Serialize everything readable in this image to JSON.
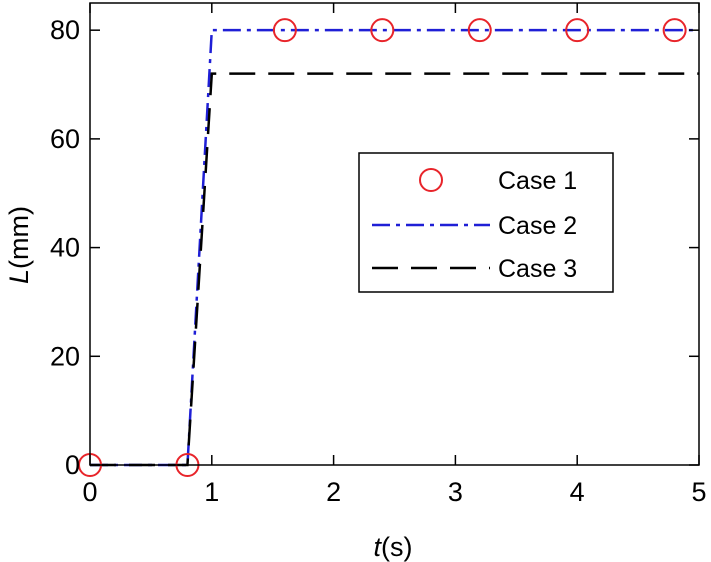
{
  "chart_data": {
    "type": "line",
    "xlabel_var": "t",
    "xlabel_unit": "(s)",
    "ylabel_var": "L",
    "ylabel_unit": "(mm)",
    "xlim": [
      0,
      5
    ],
    "ylim": [
      0,
      85
    ],
    "xticks": [
      0,
      1,
      2,
      3,
      4,
      5
    ],
    "yticks": [
      0,
      20,
      40,
      60,
      80
    ],
    "grid": false,
    "legend_position": "center-right",
    "series": [
      {
        "name": "Case 1",
        "style": "markers",
        "marker": "circle",
        "color": "#e8242a",
        "x": [
          0,
          0.8,
          1.6,
          2.4,
          3.2,
          4.0,
          4.8
        ],
        "y": [
          0,
          0,
          80,
          80,
          80,
          80,
          80
        ]
      },
      {
        "name": "Case 2",
        "style": "dashdot",
        "color": "#1f1fd6",
        "x": [
          0,
          0.8,
          1.0,
          5.0
        ],
        "y": [
          0,
          0,
          80,
          80
        ]
      },
      {
        "name": "Case 3",
        "style": "dashed",
        "color": "#000000",
        "x": [
          0,
          0.8,
          1.0,
          5.0
        ],
        "y": [
          0,
          0,
          72,
          72
        ]
      }
    ]
  }
}
